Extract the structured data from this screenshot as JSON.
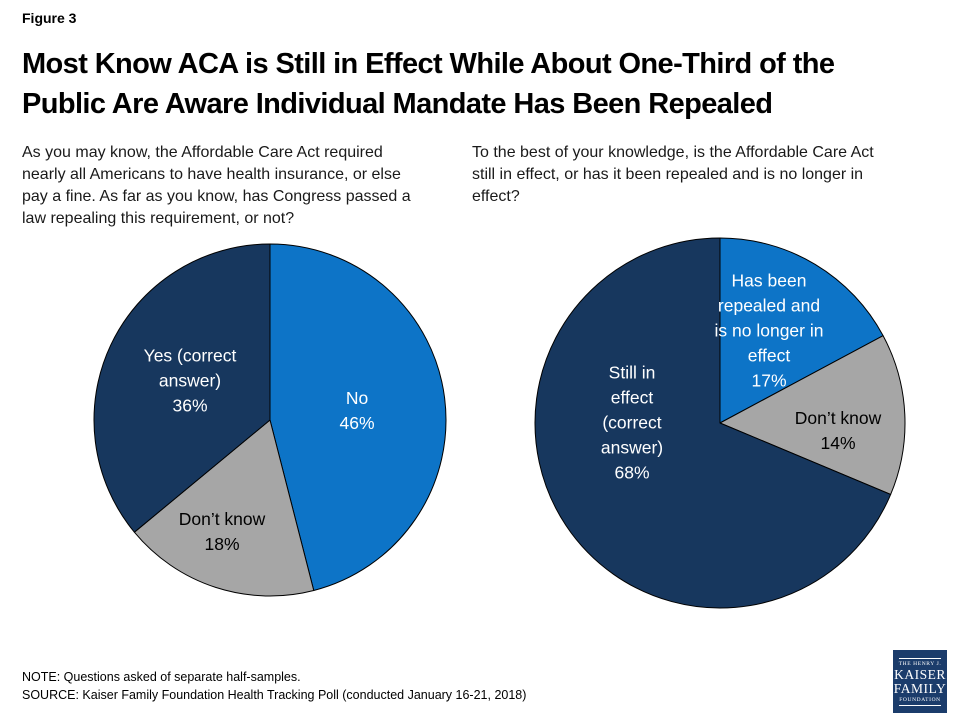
{
  "figure_label": "Figure 3",
  "title": "Most Know ACA is Still in Effect While About One-Third of the\nPublic Are Aware Individual Mandate Has Been Repealed",
  "note": "NOTE: Questions asked of separate half-samples.",
  "source": "SOURCE: Kaiser Family Foundation Health Tracking Poll (conducted January 16-21, 2018)",
  "logo": {
    "top": "THE HENRY J.",
    "line1": "KAISER",
    "line2": "FAMILY",
    "bottom": "FOUNDATION"
  },
  "colors": {
    "navy": "#17375E",
    "blue": "#0D74C7",
    "gray": "#A6A6A6",
    "outline": "#000000",
    "logo_bg": "#1B3C6B"
  },
  "chart_data": [
    {
      "type": "pie",
      "question": "As you may know, the Affordable Care Act required\nnearly all Americans to have health insurance, or else\npay a fine. As far as you know, has Congress passed a\nlaw repealing this requirement, or not?",
      "start_angle_deg": 0,
      "direction": "clockwise",
      "legend_position": "inside",
      "slices": [
        {
          "label": "No",
          "value": 46,
          "unit": "%",
          "color": "#0D74C7",
          "text_color": "white",
          "label_display": "No\n46%"
        },
        {
          "label": "Don’t know",
          "value": 18,
          "unit": "%",
          "color": "#A6A6A6",
          "text_color": "black",
          "label_display": "Don’t know\n18%"
        },
        {
          "label": "Yes (correct answer)",
          "value": 36,
          "unit": "%",
          "color": "#17375E",
          "text_color": "white",
          "label_display": "Yes (correct\nanswer)\n36%"
        }
      ]
    },
    {
      "type": "pie",
      "question": "To the best of your knowledge, is the Affordable Care Act\nstill in effect, or has it been repealed and is no longer in\neffect?",
      "start_angle_deg": 0,
      "direction": "clockwise",
      "legend_position": "inside",
      "slices": [
        {
          "label": "Has been repealed and is no longer in effect",
          "value": 17,
          "unit": "%",
          "color": "#0D74C7",
          "text_color": "white",
          "label_display": "Has been\nrepealed and\nis no longer in\neffect\n17%"
        },
        {
          "label": "Don’t know",
          "value": 14,
          "unit": "%",
          "color": "#A6A6A6",
          "text_color": "black",
          "label_display": "Don’t know\n14%"
        },
        {
          "label": "Still in effect (correct answer)",
          "value": 68,
          "unit": "%",
          "color": "#17375E",
          "text_color": "white",
          "label_display": "Still in\neffect\n(correct\nanswer)\n68%"
        }
      ]
    }
  ]
}
